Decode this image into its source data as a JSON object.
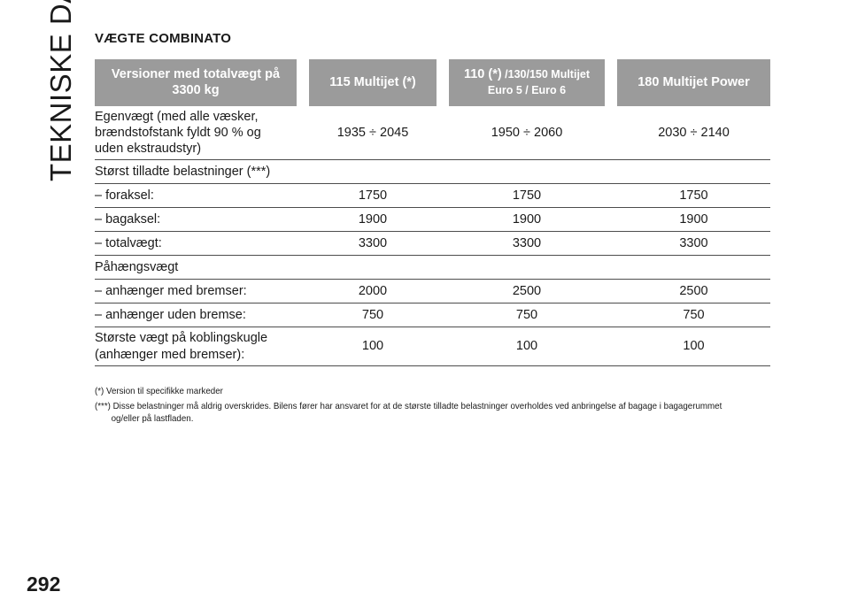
{
  "side_title": "TEKNISKE DATA",
  "page_number": "292",
  "section_title": "VÆGTE COMBINATO",
  "table": {
    "headers": {
      "col0": "Versioner med totalvægt på 3300 kg",
      "col1": "115 Multijet (*)",
      "col2_main": "110 (*)",
      "col2_small": " /130/150 Multijet",
      "col2_line2": "Euro 5 / Euro 6",
      "col3": "180 Multijet Power"
    },
    "rows": [
      {
        "label": "Egenvægt (med alle væsker, brændstofstank fyldt 90 % og uden ekstraudstyr)",
        "values": [
          "1935 ÷ 2045",
          "1950 ÷ 2060",
          "2030 ÷ 2140"
        ]
      },
      {
        "label": "Størst tilladte belastninger (***)",
        "values": [
          "",
          "",
          ""
        ]
      },
      {
        "label": "– foraksel:",
        "values": [
          "1750",
          "1750",
          "1750"
        ]
      },
      {
        "label": "– bagaksel:",
        "values": [
          "1900",
          "1900",
          "1900"
        ]
      },
      {
        "label": "– totalvægt:",
        "values": [
          "3300",
          "3300",
          "3300"
        ]
      },
      {
        "label": "Påhængsvægt",
        "values": [
          "",
          "",
          ""
        ]
      },
      {
        "label": "– anhænger med bremser:",
        "values": [
          "2000",
          "2500",
          "2500"
        ]
      },
      {
        "label": "– anhænger uden bremse:",
        "values": [
          "750",
          "750",
          "750"
        ]
      },
      {
        "label": "Største vægt på koblingskugle (anhænger med bremser):",
        "values": [
          "100",
          "100",
          "100"
        ]
      }
    ]
  },
  "footnotes": [
    "(*) Version til specifikke markeder",
    "(***) Disse belastninger må aldrig overskrides. Bilens fører har ansvaret for at de største tilladte belastninger overholdes ved anbringelse af bagage i bagagerummet og/eller på lastfladen."
  ],
  "colors": {
    "header_bg": "#9b9b9b",
    "header_text": "#ffffff",
    "rule": "#4d4d4d"
  }
}
